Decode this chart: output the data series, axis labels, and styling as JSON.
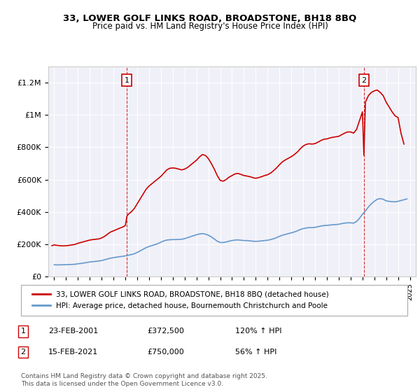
{
  "title1": "33, LOWER GOLF LINKS ROAD, BROADSTONE, BH18 8BQ",
  "title2": "Price paid vs. HM Land Registry's House Price Index (HPI)",
  "ylabel_vals": [
    "£0",
    "£200K",
    "£400K",
    "£600K",
    "£800K",
    "£1M",
    "£1.2M"
  ],
  "ylim": [
    0,
    1300000
  ],
  "yticks": [
    0,
    200000,
    400000,
    600000,
    800000,
    1000000,
    1200000
  ],
  "xlim_start": 1994.5,
  "xlim_end": 2025.5,
  "sale1_x": 2001.13,
  "sale1_y": 372500,
  "sale2_x": 2021.12,
  "sale2_y": 750000,
  "legend_line1": "33, LOWER GOLF LINKS ROAD, BROADSTONE, BH18 8BQ (detached house)",
  "legend_line2": "HPI: Average price, detached house, Bournemouth Christchurch and Poole",
  "annotation1_date": "23-FEB-2001",
  "annotation1_price": "£372,500",
  "annotation1_hpi": "120% ↑ HPI",
  "annotation2_date": "15-FEB-2021",
  "annotation2_price": "£750,000",
  "annotation2_hpi": "56% ↑ HPI",
  "footer": "Contains HM Land Registry data © Crown copyright and database right 2025.\nThis data is licensed under the Open Government Licence v3.0.",
  "line_color_red": "#cc0000",
  "line_color_blue": "#6699cc",
  "plot_bg": "#f0f0f8",
  "hpi_years": [
    1995.0,
    1995.25,
    1995.5,
    1995.75,
    1996.0,
    1996.25,
    1996.5,
    1996.75,
    1997.0,
    1997.25,
    1997.5,
    1997.75,
    1998.0,
    1998.25,
    1998.5,
    1998.75,
    1999.0,
    1999.25,
    1999.5,
    1999.75,
    2000.0,
    2000.25,
    2000.5,
    2000.75,
    2001.0,
    2001.25,
    2001.5,
    2001.75,
    2002.0,
    2002.25,
    2002.5,
    2002.75,
    2003.0,
    2003.25,
    2003.5,
    2003.75,
    2004.0,
    2004.25,
    2004.5,
    2004.75,
    2005.0,
    2005.25,
    2005.5,
    2005.75,
    2006.0,
    2006.25,
    2006.5,
    2006.75,
    2007.0,
    2007.25,
    2007.5,
    2007.75,
    2008.0,
    2008.25,
    2008.5,
    2008.75,
    2009.0,
    2009.25,
    2009.5,
    2009.75,
    2010.0,
    2010.25,
    2010.5,
    2010.75,
    2011.0,
    2011.25,
    2011.5,
    2011.75,
    2012.0,
    2012.25,
    2012.5,
    2012.75,
    2013.0,
    2013.25,
    2013.5,
    2013.75,
    2014.0,
    2014.25,
    2014.5,
    2014.75,
    2015.0,
    2015.25,
    2015.5,
    2015.75,
    2016.0,
    2016.25,
    2016.5,
    2016.75,
    2017.0,
    2017.25,
    2017.5,
    2017.75,
    2018.0,
    2018.25,
    2018.5,
    2018.75,
    2019.0,
    2019.25,
    2019.5,
    2019.75,
    2020.0,
    2020.25,
    2020.5,
    2020.75,
    2021.0,
    2021.25,
    2021.5,
    2021.75,
    2022.0,
    2022.25,
    2022.5,
    2022.75,
    2023.0,
    2023.25,
    2023.5,
    2023.75,
    2024.0,
    2024.25,
    2024.5,
    2024.75
  ],
  "hpi_vals": [
    72000,
    71000,
    71500,
    72000,
    72500,
    73000,
    74000,
    75000,
    78000,
    80000,
    83000,
    86000,
    89000,
    91000,
    93000,
    95000,
    98000,
    103000,
    108000,
    113000,
    116000,
    119000,
    122000,
    124000,
    127000,
    131000,
    135000,
    140000,
    148000,
    158000,
    168000,
    178000,
    185000,
    191000,
    197000,
    203000,
    212000,
    220000,
    225000,
    227000,
    228000,
    228000,
    229000,
    230000,
    234000,
    240000,
    246000,
    252000,
    258000,
    263000,
    265000,
    262000,
    255000,
    245000,
    232000,
    218000,
    210000,
    210000,
    213000,
    218000,
    222000,
    225000,
    226000,
    224000,
    222000,
    222000,
    220000,
    218000,
    217000,
    218000,
    220000,
    222000,
    224000,
    228000,
    233000,
    240000,
    248000,
    255000,
    260000,
    265000,
    270000,
    275000,
    282000,
    290000,
    296000,
    300000,
    302000,
    302000,
    304000,
    308000,
    312000,
    315000,
    316000,
    318000,
    320000,
    321000,
    323000,
    327000,
    330000,
    332000,
    332000,
    330000,
    340000,
    360000,
    385000,
    405000,
    430000,
    450000,
    465000,
    478000,
    482000,
    478000,
    468000,
    465000,
    463000,
    462000,
    465000,
    470000,
    475000,
    480000
  ],
  "prop_years": [
    1994.8,
    1995.0,
    1995.25,
    1995.5,
    1995.75,
    1996.0,
    1996.25,
    1996.5,
    1996.75,
    1997.0,
    1997.25,
    1997.5,
    1997.75,
    1998.0,
    1998.25,
    1998.5,
    1998.75,
    1999.0,
    1999.25,
    1999.5,
    1999.75,
    2000.0,
    2000.25,
    2000.5,
    2000.75,
    2001.0,
    2001.13,
    2001.25,
    2001.5,
    2001.75,
    2002.0,
    2002.25,
    2002.5,
    2002.75,
    2003.0,
    2003.25,
    2003.5,
    2003.75,
    2004.0,
    2004.25,
    2004.5,
    2004.75,
    2005.0,
    2005.25,
    2005.5,
    2005.75,
    2006.0,
    2006.25,
    2006.5,
    2006.75,
    2007.0,
    2007.25,
    2007.5,
    2007.75,
    2008.0,
    2008.25,
    2008.5,
    2008.75,
    2009.0,
    2009.25,
    2009.5,
    2009.75,
    2010.0,
    2010.25,
    2010.5,
    2010.75,
    2011.0,
    2011.25,
    2011.5,
    2011.75,
    2012.0,
    2012.25,
    2012.5,
    2012.75,
    2013.0,
    2013.25,
    2013.5,
    2013.75,
    2014.0,
    2014.25,
    2014.5,
    2014.75,
    2015.0,
    2015.25,
    2015.5,
    2015.75,
    2016.0,
    2016.25,
    2016.5,
    2016.75,
    2017.0,
    2017.25,
    2017.5,
    2017.75,
    2018.0,
    2018.25,
    2018.5,
    2018.75,
    2019.0,
    2019.25,
    2019.5,
    2019.75,
    2020.0,
    2020.25,
    2020.5,
    2020.75,
    2021.0,
    2021.12,
    2021.25,
    2021.5,
    2021.75,
    2022.0,
    2022.25,
    2022.5,
    2022.75,
    2023.0,
    2023.25,
    2023.5,
    2023.75,
    2024.0,
    2024.25,
    2024.5
  ],
  "prop_vals": [
    190000,
    195000,
    192000,
    190000,
    189000,
    190000,
    192000,
    195000,
    198000,
    205000,
    210000,
    215000,
    220000,
    225000,
    228000,
    230000,
    232000,
    238000,
    248000,
    262000,
    275000,
    282000,
    290000,
    298000,
    305000,
    315000,
    372500,
    385000,
    400000,
    420000,
    450000,
    480000,
    510000,
    540000,
    560000,
    575000,
    590000,
    605000,
    620000,
    640000,
    660000,
    670000,
    672000,
    670000,
    665000,
    660000,
    665000,
    675000,
    690000,
    705000,
    720000,
    740000,
    755000,
    750000,
    730000,
    700000,
    665000,
    625000,
    595000,
    590000,
    600000,
    615000,
    625000,
    635000,
    638000,
    632000,
    625000,
    622000,
    618000,
    612000,
    608000,
    612000,
    618000,
    625000,
    630000,
    640000,
    655000,
    672000,
    692000,
    710000,
    722000,
    732000,
    742000,
    755000,
    770000,
    790000,
    808000,
    818000,
    822000,
    820000,
    823000,
    832000,
    842000,
    850000,
    852000,
    858000,
    862000,
    865000,
    868000,
    878000,
    888000,
    895000,
    895000,
    888000,
    910000,
    965000,
    1020000,
    750000,
    1080000,
    1120000,
    1140000,
    1150000,
    1155000,
    1140000,
    1120000,
    1080000,
    1050000,
    1020000,
    995000,
    985000,
    888000,
    820000
  ]
}
